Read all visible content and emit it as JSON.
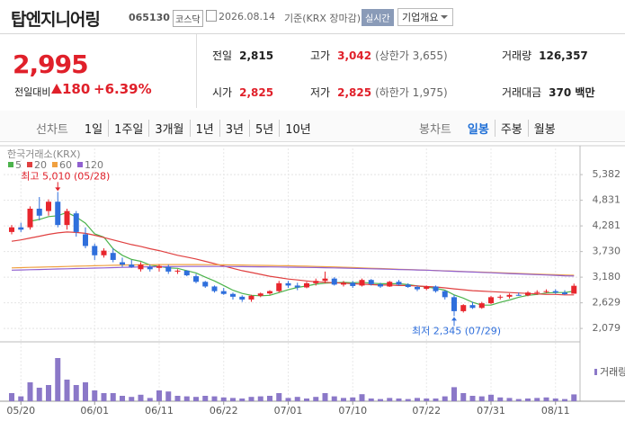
{
  "header": {
    "name": "탑엔지니어링",
    "code": "065130",
    "market": "코스닥",
    "date": "2026.08.14",
    "basis": "기준(KRX 장마감)",
    "realtime": "실시간",
    "company_info": "기업개요"
  },
  "quote": {
    "price": "2,995",
    "change_label": "전일대비",
    "change": "180",
    "change_rate": "+6.39%"
  },
  "stats": [
    {
      "label": "전일",
      "value": "2,815"
    },
    {
      "label": "고가",
      "value": "3,042",
      "note": "(상한가 3,655)"
    },
    {
      "label": "거래량",
      "value": "126,357"
    },
    {
      "label": "시가",
      "value": "2,825"
    },
    {
      "label": "저가",
      "value": "2,825",
      "note": "(하한가 1,975)"
    },
    {
      "label": "거래대금",
      "value": "370 백만"
    }
  ],
  "tabs": {
    "line": {
      "label": "선차트",
      "items": [
        "1일",
        "1주일",
        "3개월",
        "1년",
        "3년",
        "5년",
        "10년"
      ]
    },
    "candle": {
      "label": "봉차트",
      "items": [
        "일봉",
        "주봉",
        "월봉"
      ],
      "active": "일봉"
    }
  },
  "chart_data": {
    "type": "candlestick",
    "source": "한국거래소(KRX)",
    "categories": [
      null,
      "05/20",
      null,
      null,
      null,
      null,
      null,
      null,
      null,
      "06/01",
      null,
      null,
      null,
      null,
      null,
      null,
      "06/11",
      null,
      null,
      null,
      null,
      null,
      null,
      "06/22",
      null,
      null,
      null,
      null,
      null,
      null,
      "07/01",
      null,
      null,
      null,
      null,
      null,
      null,
      "07/10",
      null,
      null,
      null,
      null,
      null,
      null,
      null,
      "07/22",
      null,
      null,
      null,
      null,
      null,
      null,
      "07/31",
      null,
      null,
      null,
      null,
      null,
      null,
      "08/11",
      null,
      null
    ],
    "open": [
      4150,
      4250,
      4250,
      4650,
      4600,
      4800,
      4300,
      4550,
      4100,
      3850,
      3650,
      3700,
      3500,
      3450,
      3350,
      3400,
      3380,
      3400,
      3300,
      3320,
      3200,
      3080,
      2980,
      2880,
      2820,
      2760,
      2700,
      2780,
      2830,
      2880,
      3050,
      3000,
      2960,
      3050,
      3100,
      3150,
      3020,
      3060,
      3000,
      3120,
      3030,
      2980,
      3080,
      3020,
      2970,
      2930,
      2980,
      2880,
      2750,
      2450,
      2580,
      2520,
      2620,
      2750,
      2760,
      2800,
      2790,
      2850,
      2860,
      2880,
      2850,
      2825
    ],
    "high": [
      4300,
      4350,
      4700,
      4900,
      4850,
      5010,
      4650,
      4600,
      4250,
      3900,
      3800,
      3800,
      3600,
      3550,
      3500,
      3450,
      3450,
      3450,
      3350,
      3330,
      3250,
      3100,
      3000,
      2950,
      2850,
      2790,
      2800,
      2850,
      2900,
      3100,
      3100,
      3060,
      3080,
      3150,
      3300,
      3180,
      3100,
      3100,
      3150,
      3140,
      3060,
      3100,
      3120,
      3050,
      3000,
      3000,
      3000,
      2900,
      2800,
      2600,
      2650,
      2650,
      2780,
      2800,
      2830,
      2850,
      2880,
      2900,
      2920,
      2920,
      2900,
      3042
    ],
    "low": [
      4100,
      4150,
      4200,
      4400,
      4500,
      4250,
      4200,
      4050,
      3800,
      3550,
      3600,
      3500,
      3400,
      3380,
      3300,
      3300,
      3300,
      3250,
      3250,
      3200,
      3050,
      2950,
      2850,
      2800,
      2700,
      2650,
      2650,
      2750,
      2800,
      2850,
      2950,
      2900,
      2940,
      3000,
      3050,
      3000,
      2980,
      2950,
      2980,
      3000,
      2950,
      2970,
      3000,
      2950,
      2880,
      2900,
      2850,
      2700,
      2345,
      2420,
      2500,
      2500,
      2600,
      2700,
      2720,
      2780,
      2770,
      2800,
      2840,
      2820,
      2800,
      2825
    ],
    "close": [
      4250,
      4200,
      4650,
      4500,
      4800,
      4300,
      4600,
      4150,
      3850,
      3650,
      3750,
      3550,
      3450,
      3400,
      3450,
      3350,
      3420,
      3300,
      3320,
      3220,
      3080,
      2980,
      2880,
      2820,
      2760,
      2700,
      2780,
      2830,
      2880,
      3050,
      3000,
      2960,
      3050,
      3100,
      3150,
      3020,
      3060,
      2990,
      3120,
      3030,
      2980,
      3080,
      3020,
      2970,
      2920,
      2980,
      2880,
      2750,
      2450,
      2580,
      2520,
      2620,
      2750,
      2760,
      2800,
      2790,
      2850,
      2860,
      2880,
      2850,
      2815,
      2995
    ],
    "up_color": "#e8262d",
    "down_color": "#2f6fdc",
    "ma": [
      {
        "name": "5",
        "color": "#4cb34c",
        "values": [
          null,
          null,
          4380,
          4420,
          4480,
          4500,
          4570,
          4470,
          4340,
          4110,
          4040,
          3790,
          3650,
          3560,
          3520,
          3440,
          3410,
          3380,
          3370,
          3320,
          3270,
          3180,
          3100,
          3000,
          2900,
          2830,
          2790,
          2780,
          2790,
          2850,
          2910,
          2960,
          2990,
          3030,
          3050,
          3060,
          3070,
          3060,
          3070,
          3050,
          3040,
          3040,
          3040,
          3020,
          2990,
          2970,
          2940,
          2900,
          2800,
          2730,
          2640,
          2580,
          2580,
          2640,
          2690,
          2750,
          2790,
          2810,
          2840,
          2850,
          2850,
          2880
        ]
      },
      {
        "name": "20",
        "color": "#e04040",
        "values": [
          3950,
          3980,
          4020,
          4060,
          4100,
          4130,
          4150,
          4140,
          4120,
          4080,
          4030,
          3980,
          3930,
          3880,
          3840,
          3790,
          3750,
          3700,
          3650,
          3610,
          3570,
          3520,
          3470,
          3420,
          3370,
          3320,
          3280,
          3240,
          3200,
          3170,
          3140,
          3120,
          3100,
          3080,
          3070,
          3060,
          3050,
          3040,
          3030,
          3020,
          3010,
          3010,
          3000,
          3000,
          2990,
          2980,
          2970,
          2950,
          2930,
          2910,
          2890,
          2880,
          2870,
          2860,
          2850,
          2840,
          2830,
          2820,
          2810,
          2810,
          2800,
          2800
        ]
      },
      {
        "name": "60",
        "color": "#f0a040",
        "values": [
          3380,
          3385,
          3390,
          3395,
          3400,
          3405,
          3410,
          3415,
          3420,
          3425,
          3430,
          3435,
          3440,
          3442,
          3445,
          3447,
          3450,
          3450,
          3450,
          3450,
          3450,
          3448,
          3446,
          3444,
          3442,
          3440,
          3437,
          3434,
          3431,
          3428,
          3425,
          3420,
          3415,
          3410,
          3405,
          3400,
          3393,
          3386,
          3379,
          3372,
          3365,
          3358,
          3351,
          3344,
          3337,
          3330,
          3323,
          3316,
          3309,
          3302,
          3295,
          3288,
          3281,
          3274,
          3267,
          3260,
          3253,
          3246,
          3239,
          3232,
          3226,
          3220
        ]
      },
      {
        "name": "120",
        "color": "#9060d0",
        "values": [
          3330,
          3335,
          3340,
          3345,
          3350,
          3355,
          3360,
          3365,
          3370,
          3375,
          3380,
          3385,
          3390,
          3395,
          3400,
          3402,
          3404,
          3406,
          3408,
          3410,
          3410,
          3410,
          3410,
          3410,
          3408,
          3406,
          3404,
          3402,
          3400,
          3398,
          3395,
          3392,
          3389,
          3386,
          3383,
          3380,
          3375,
          3370,
          3365,
          3360,
          3355,
          3350,
          3345,
          3340,
          3335,
          3330,
          3322,
          3314,
          3306,
          3298,
          3290,
          3282,
          3274,
          3266,
          3258,
          3250,
          3242,
          3234,
          3226,
          3218,
          3210,
          3205
        ]
      }
    ],
    "volume": {
      "name": "거래량",
      "color": "#8b78c8",
      "values": [
        150000,
        90000,
        350000,
        250000,
        300000,
        800000,
        400000,
        300000,
        350000,
        200000,
        150000,
        150000,
        100000,
        80000,
        120000,
        60000,
        200000,
        180000,
        100000,
        90000,
        80000,
        100000,
        90000,
        70000,
        60000,
        50000,
        80000,
        90000,
        100000,
        150000,
        60000,
        80000,
        50000,
        80000,
        150000,
        90000,
        60000,
        70000,
        130000,
        50000,
        40000,
        60000,
        50000,
        40000,
        60000,
        50000,
        50000,
        90000,
        260000,
        150000,
        100000,
        90000,
        120000,
        70000,
        60000,
        40000,
        50000,
        60000,
        70000,
        50000,
        40000,
        126357
      ]
    },
    "ylim": [
      1830,
      5500
    ],
    "yticks": [
      {
        "value": 5382,
        "label": "5,382"
      },
      {
        "value": 4831,
        "label": "4,831"
      },
      {
        "value": 4281,
        "label": "4,281"
      },
      {
        "value": 3730,
        "label": "3,730"
      },
      {
        "value": 3180,
        "label": "3,180"
      },
      {
        "value": 2629,
        "label": "2,629"
      },
      {
        "value": 2079,
        "label": "2,079"
      }
    ],
    "grid": true,
    "high_label": "최고 5,010 (05/28)",
    "low_label": "최저 2,345 (07/29)"
  }
}
